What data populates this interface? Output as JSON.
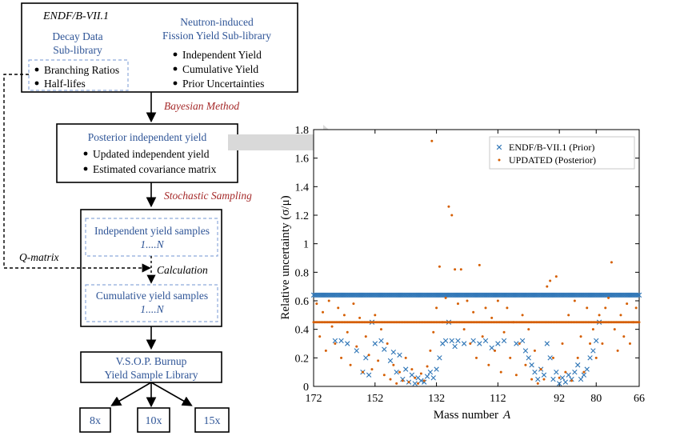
{
  "flowchart": {
    "box1": {
      "title": "ENDF/B-VII.1",
      "decay_title_1": "Decay Data",
      "decay_title_2": "Sub-library",
      "decay_items": [
        "Branching Ratios",
        "Half-lifes"
      ],
      "fission_title_1": "Neutron-induced",
      "fission_title_2": "Fission Yield Sub-library",
      "fission_items": [
        "Independent Yield",
        "Cumulative Yield",
        "Prior Uncertainties"
      ]
    },
    "bayesian_label": "Bayesian Method",
    "box2": {
      "title": "Posterior independent yield",
      "items": [
        "Updated independent yield",
        "Estimated covariance matrix"
      ]
    },
    "stochastic_label": "Stochastic Sampling",
    "box3": {
      "indep_1": "Independent yield samples",
      "indep_2": "1....N",
      "calc_label": "Calculation",
      "cum_1": "Cumulative yield samples",
      "cum_2": "1....N"
    },
    "qmatrix_label": "Q-matrix",
    "box4": {
      "line1": "V.S.O.P. Burnup",
      "line2": "Yield Sample Library"
    },
    "outputs": [
      "8x",
      "10x",
      "15x"
    ]
  },
  "colors": {
    "accent_text": "#2f5597",
    "method_label": "#a52a2a",
    "prior_marker": "#2e75b6",
    "posterior_marker": "#d55e00"
  },
  "chart_data": {
    "type": "scatter",
    "xlabel": "Mass number",
    "xlabel_symbol": "A",
    "ylabel": "Relative uncertainty (σ/μ)",
    "xlim": [
      172,
      66
    ],
    "x_reversed": true,
    "ylim": [
      0,
      1.8
    ],
    "xticks": [
      172,
      152,
      132,
      112,
      92,
      80,
      66
    ],
    "yticks": [
      0,
      0.2,
      0.4,
      0.6,
      0.8,
      1.0,
      1.2,
      1.4,
      1.6,
      1.8
    ],
    "ytick_labels": [
      "0",
      "0.2",
      "0.4",
      "0.6",
      "0.8",
      "1",
      "1.2",
      "1.4",
      "1.6",
      "1.8"
    ],
    "legend_position": "top-right",
    "series": [
      {
        "name": "ENDF/B-VII.1 (Prior)",
        "marker": "x",
        "color": "#2e75b6",
        "bands": [
          {
            "value": 0.64,
            "x_from": 172,
            "x_to": 66,
            "step": 0.5
          }
        ],
        "points": [
          [
            165,
            0.32
          ],
          [
            163,
            0.32
          ],
          [
            161,
            0.3
          ],
          [
            158,
            0.25
          ],
          [
            156,
            0.1
          ],
          [
            155,
            0.2
          ],
          [
            154,
            0.08
          ],
          [
            153,
            0.45
          ],
          [
            152,
            0.3
          ],
          [
            150,
            0.32
          ],
          [
            149,
            0.26
          ],
          [
            147,
            0.18
          ],
          [
            146,
            0.24
          ],
          [
            145,
            0.1
          ],
          [
            144,
            0.22
          ],
          [
            143,
            0.05
          ],
          [
            142,
            0.12
          ],
          [
            141,
            0.03
          ],
          [
            140,
            0.08
          ],
          [
            139,
            0.02
          ],
          [
            138,
            0.06
          ],
          [
            137,
            0.04
          ],
          [
            136,
            0.03
          ],
          [
            135,
            0.07
          ],
          [
            134,
            0.1
          ],
          [
            133,
            0.06
          ],
          [
            132,
            0.12
          ],
          [
            131,
            0.2
          ],
          [
            130,
            0.3
          ],
          [
            129,
            0.32
          ],
          [
            128,
            0.45
          ],
          [
            127,
            0.32
          ],
          [
            126,
            0.28
          ],
          [
            125,
            0.32
          ],
          [
            123,
            0.3
          ],
          [
            120,
            0.32
          ],
          [
            118,
            0.3
          ],
          [
            116,
            0.32
          ],
          [
            114,
            0.27
          ],
          [
            112,
            0.3
          ],
          [
            110,
            0.32
          ],
          [
            106,
            0.3
          ],
          [
            104,
            0.32
          ],
          [
            103,
            0.25
          ],
          [
            102,
            0.2
          ],
          [
            101,
            0.15
          ],
          [
            100,
            0.1
          ],
          [
            99,
            0.05
          ],
          [
            98,
            0.12
          ],
          [
            97,
            0.08
          ],
          [
            96,
            0.3
          ],
          [
            95,
            0.2
          ],
          [
            94,
            0.05
          ],
          [
            93,
            0.1
          ],
          [
            92,
            0.02
          ],
          [
            91,
            0.06
          ],
          [
            90,
            0.03
          ],
          [
            89,
            0.08
          ],
          [
            88,
            0.05
          ],
          [
            87,
            0.1
          ],
          [
            86,
            0.15
          ],
          [
            85,
            0.05
          ],
          [
            84,
            0.08
          ],
          [
            83,
            0.12
          ],
          [
            82,
            0.2
          ],
          [
            81,
            0.25
          ],
          [
            80,
            0.32
          ],
          [
            79,
            0.45
          ]
        ]
      },
      {
        "name": "UPDATED (Posterior)",
        "marker": "dot",
        "color": "#d55e00",
        "bands": [
          {
            "value": 0.45,
            "x_from": 172,
            "x_to": 66,
            "step": 0.5
          }
        ],
        "points": [
          [
            171,
            0.58
          ],
          [
            170,
            0.35
          ],
          [
            169,
            0.52
          ],
          [
            168,
            0.25
          ],
          [
            167,
            0.6
          ],
          [
            166,
            0.42
          ],
          [
            165,
            0.3
          ],
          [
            164,
            0.55
          ],
          [
            163,
            0.2
          ],
          [
            162,
            0.5
          ],
          [
            161,
            0.38
          ],
          [
            160,
            0.15
          ],
          [
            159,
            0.58
          ],
          [
            158,
            0.28
          ],
          [
            157,
            0.48
          ],
          [
            156,
            0.1
          ],
          [
            155,
            0.35
          ],
          [
            154,
            0.22
          ],
          [
            153,
            0.12
          ],
          [
            152,
            0.5
          ],
          [
            151,
            0.18
          ],
          [
            150,
            0.4
          ],
          [
            149,
            0.08
          ],
          [
            148,
            0.3
          ],
          [
            147,
            0.05
          ],
          [
            146,
            0.15
          ],
          [
            145,
            0.02
          ],
          [
            144,
            0.1
          ],
          [
            143,
            0.04
          ],
          [
            142,
            0.2
          ],
          [
            141,
            0.03
          ],
          [
            140,
            0.12
          ],
          [
            139,
            0.06
          ],
          [
            138,
            0.02
          ],
          [
            137,
            0.09
          ],
          [
            136,
            0.04
          ],
          [
            135,
            0.14
          ],
          [
            134,
            0.25
          ],
          [
            133,
            0.38
          ],
          [
            132,
            0.55
          ],
          [
            131,
            0.84
          ],
          [
            130,
            0.45
          ],
          [
            129,
            0.62
          ],
          [
            128,
            1.26
          ],
          [
            127,
            1.2
          ],
          [
            126,
            0.82
          ],
          [
            125,
            0.58
          ],
          [
            133.5,
            1.72
          ],
          [
            124,
            0.82
          ],
          [
            123,
            0.4
          ],
          [
            122,
            0.6
          ],
          [
            121,
            0.3
          ],
          [
            120,
            0.52
          ],
          [
            119,
            0.2
          ],
          [
            118,
            0.85
          ],
          [
            117,
            0.35
          ],
          [
            116,
            0.55
          ],
          [
            115,
            0.15
          ],
          [
            114,
            0.48
          ],
          [
            113,
            0.25
          ],
          [
            112,
            0.6
          ],
          [
            111,
            0.1
          ],
          [
            110,
            0.38
          ],
          [
            109,
            0.55
          ],
          [
            108,
            0.2
          ],
          [
            107,
            0.45
          ],
          [
            106,
            0.08
          ],
          [
            105,
            0.3
          ],
          [
            104,
            0.5
          ],
          [
            103,
            0.15
          ],
          [
            102,
            0.4
          ],
          [
            101,
            0.05
          ],
          [
            100,
            0.25
          ],
          [
            99,
            0.02
          ],
          [
            98,
            0.12
          ],
          [
            97,
            0.05
          ],
          [
            96,
            0.7
          ],
          [
            95,
            0.74
          ],
          [
            94,
            0.2
          ],
          [
            93,
            0.77
          ],
          [
            92,
            0.06
          ],
          [
            91,
            0.3
          ],
          [
            90,
            0.1
          ],
          [
            89,
            0.5
          ],
          [
            88,
            0.04
          ],
          [
            87,
            0.6
          ],
          [
            86,
            0.2
          ],
          [
            85,
            0.35
          ],
          [
            84,
            0.1
          ],
          [
            83,
            0.55
          ],
          [
            82,
            0.3
          ],
          [
            81,
            0.4
          ],
          [
            80,
            0.2
          ],
          [
            79,
            0.5
          ],
          [
            78,
            0.3
          ],
          [
            77,
            0.55
          ],
          [
            76,
            0.62
          ],
          [
            75,
            0.87
          ],
          [
            74,
            0.4
          ],
          [
            73,
            0.25
          ],
          [
            72,
            0.5
          ],
          [
            71,
            0.35
          ],
          [
            70,
            0.58
          ],
          [
            69,
            0.3
          ],
          [
            68,
            0.45
          ],
          [
            67,
            0.55
          ]
        ]
      }
    ]
  }
}
